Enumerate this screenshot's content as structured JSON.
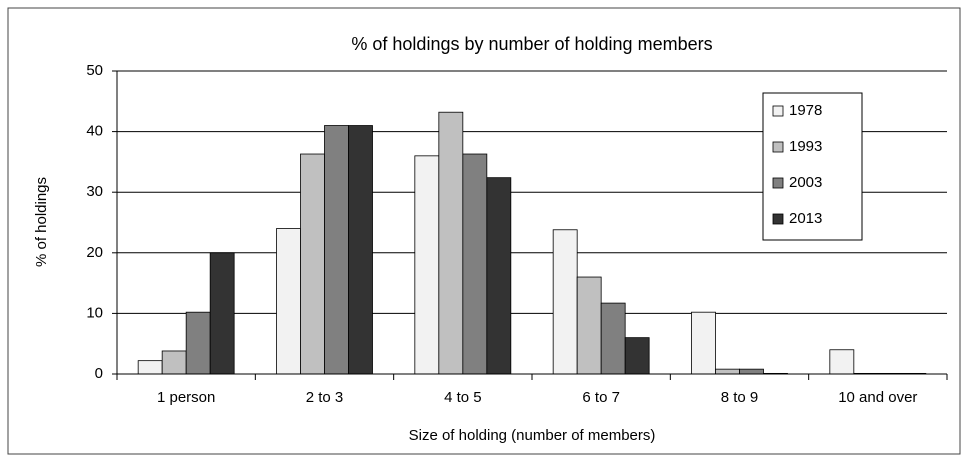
{
  "chart_data": {
    "type": "bar",
    "title": "% of holdings by number of holding members",
    "x_label": "Size of  holding (number of members)",
    "y_label": "% of holdings",
    "categories": [
      "1 person",
      "2 to 3",
      "4 to 5",
      "6 to 7",
      "8 to 9",
      "10 and over"
    ],
    "series": [
      {
        "name": "1978",
        "color": "#f2f2f2",
        "values": [
          2.2,
          24,
          36,
          23.8,
          10.2,
          4
        ]
      },
      {
        "name": "1993",
        "color": "#c0c0c0",
        "values": [
          3.8,
          36.3,
          43.2,
          16,
          0.8,
          0.1
        ]
      },
      {
        "name": "2003",
        "color": "#808080",
        "values": [
          10.2,
          41,
          36.3,
          11.7,
          0.8,
          0.1
        ]
      },
      {
        "name": "2013",
        "color": "#333333",
        "values": [
          20,
          41,
          32.4,
          6,
          0.1,
          0.1
        ]
      }
    ],
    "ylim": [
      0,
      50
    ],
    "yticks": [
      0,
      10,
      20,
      30,
      40,
      50
    ],
    "grid": true,
    "legend": "upper right"
  }
}
